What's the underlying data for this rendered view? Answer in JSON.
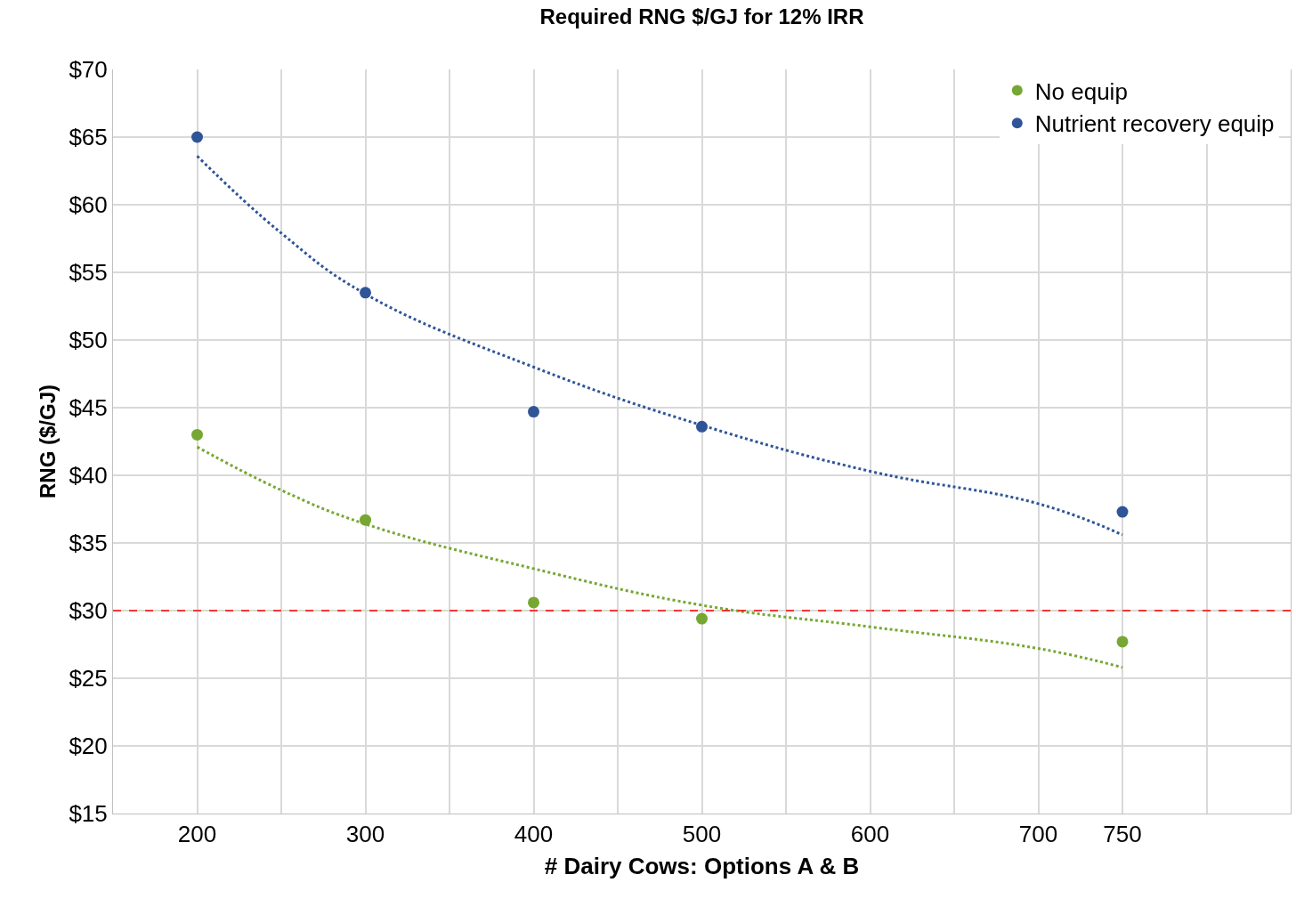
{
  "chart_data": {
    "type": "scatter",
    "title": "Required RNG $/GJ for 12% IRR",
    "xlabel": "# Dairy Cows: Options A & B",
    "ylabel": "RNG ($/GJ)",
    "xlim": [
      150,
      850
    ],
    "xticks": [
      {
        "value": 150,
        "label": null
      },
      200,
      {
        "value": 250,
        "label": null
      },
      300,
      {
        "value": 350,
        "label": null
      },
      400,
      {
        "value": 450,
        "label": null
      },
      500,
      {
        "value": 550,
        "label": null
      },
      600,
      {
        "value": 650,
        "label": null
      },
      700,
      750,
      {
        "value": 800,
        "label": null
      }
    ],
    "ylim": [
      15,
      70
    ],
    "yticks": [
      {
        "value": 15,
        "label": "$15"
      },
      {
        "value": 20,
        "label": "$20"
      },
      {
        "value": 25,
        "label": "$25"
      },
      {
        "value": 30,
        "label": "$30"
      },
      {
        "value": 35,
        "label": "$35"
      },
      {
        "value": 40,
        "label": "$40"
      },
      {
        "value": 45,
        "label": "$45"
      },
      {
        "value": 50,
        "label": "$50"
      },
      {
        "value": 55,
        "label": "$55"
      },
      {
        "value": 60,
        "label": "$60"
      },
      {
        "value": 65,
        "label": "$65"
      },
      {
        "value": 70,
        "label": "$70"
      }
    ],
    "grid": true,
    "legend": "top right",
    "marker": "circle",
    "series": [
      {
        "name": "No equip",
        "color": "#77a733",
        "x": [
          200,
          300,
          400,
          500,
          750
        ],
        "values": [
          43,
          36.7,
          30.6,
          29.4,
          27.7
        ]
      },
      {
        "name": "Nutrient recovery equip",
        "color": "#2f5597",
        "x": [
          200,
          300,
          400,
          500,
          750
        ],
        "values": [
          65,
          53.5,
          44.7,
          43.6,
          37.3
        ]
      },
      {
        "type": "line",
        "line_style": "dotted",
        "marker": "none",
        "color": "#77a733",
        "x": [
          200,
          250,
          300,
          400,
          500,
          600,
          700,
          750
        ],
        "values": [
          42.1,
          38.9,
          36.4,
          33.1,
          30.4,
          28.8,
          27.2,
          25.8
        ]
      },
      {
        "type": "line",
        "line_style": "dotted",
        "marker": "none",
        "color": "#2f5597",
        "x": [
          200,
          250,
          300,
          400,
          500,
          600,
          700,
          750
        ],
        "values": [
          63.6,
          57.9,
          53.4,
          48.0,
          43.7,
          40.3,
          37.9,
          35.6
        ]
      }
    ],
    "ref_lines": [
      {
        "axis": "y",
        "value": 30,
        "color": "#ff0000",
        "line_style": "dashed"
      }
    ]
  }
}
